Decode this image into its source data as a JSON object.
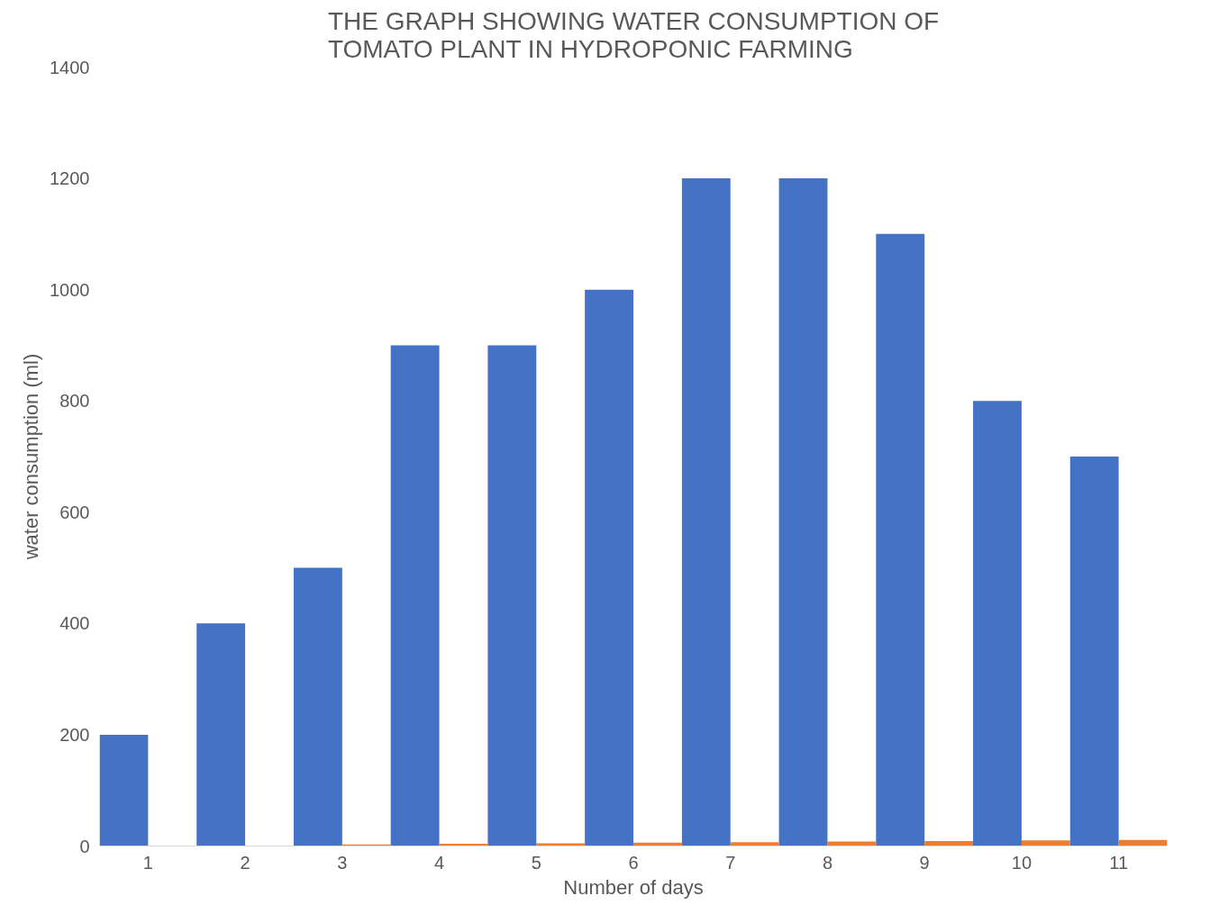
{
  "chart_data": {
    "type": "bar",
    "title": "THE GRAPH SHOWING WATER CONSUMPTION OF TOMATO PLANT IN HYDROPONIC FARMING",
    "xlabel": "Number of days",
    "ylabel": "water consumption (ml)",
    "categories": [
      "1",
      "2",
      "3",
      "4",
      "5",
      "6",
      "7",
      "8",
      "9",
      "10",
      "11"
    ],
    "series": [
      {
        "color": "#4472c4",
        "values": [
          200,
          400,
          500,
          900,
          900,
          1000,
          1200,
          1200,
          1100,
          800,
          700
        ]
      },
      {
        "color": "#ed7d31",
        "values": [
          null,
          null,
          3,
          4,
          5,
          6,
          7,
          8,
          9,
          10,
          11
        ]
      }
    ],
    "ylim": [
      0,
      1400
    ],
    "yticks": [
      0,
      200,
      400,
      600,
      800,
      1000,
      1200,
      1400
    ],
    "grid": false
  }
}
